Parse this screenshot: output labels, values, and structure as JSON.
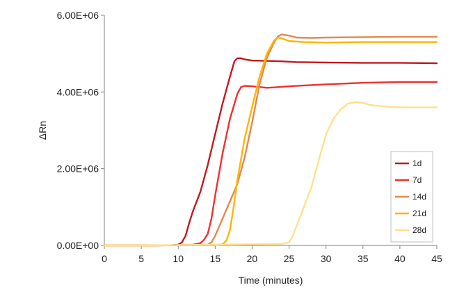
{
  "chart_data": {
    "type": "line",
    "xlabel": "Time (minutes)",
    "ylabel": "ΔRn",
    "xlim": [
      0,
      45
    ],
    "ylim": [
      0,
      6000000
    ],
    "xticks": [
      0,
      5,
      10,
      15,
      20,
      25,
      30,
      35,
      40,
      45
    ],
    "xtick_labels": [
      "0",
      "5",
      "10",
      "15",
      "20",
      "25",
      "30",
      "35",
      "40",
      "45"
    ],
    "yticks": [
      0,
      2000000,
      4000000,
      6000000
    ],
    "ytick_labels": [
      "0.00E+00",
      "2.00E+06",
      "4.00E+06",
      "6.00E+06"
    ],
    "grid": false,
    "legend_position": "right",
    "series": [
      {
        "name": "1d",
        "color": "#c0191e",
        "points": [
          [
            0,
            0
          ],
          [
            5,
            0
          ],
          [
            9,
            5000
          ],
          [
            10,
            20000
          ],
          [
            10.5,
            80000
          ],
          [
            11,
            250000
          ],
          [
            11.5,
            600000
          ],
          [
            12,
            900000
          ],
          [
            13,
            1400000
          ],
          [
            14,
            2100000
          ],
          [
            15,
            2900000
          ],
          [
            16,
            3700000
          ],
          [
            17,
            4400000
          ],
          [
            17.6,
            4800000
          ],
          [
            18,
            4880000
          ],
          [
            18.5,
            4880000
          ],
          [
            19,
            4850000
          ],
          [
            20,
            4820000
          ],
          [
            22,
            4810000
          ],
          [
            24,
            4800000
          ],
          [
            26,
            4780000
          ],
          [
            30,
            4770000
          ],
          [
            35,
            4760000
          ],
          [
            40,
            4760000
          ],
          [
            45,
            4750000
          ]
        ]
      },
      {
        "name": "7d",
        "color": "#f03030",
        "points": [
          [
            0,
            0
          ],
          [
            5,
            0
          ],
          [
            10,
            5000
          ],
          [
            12,
            20000
          ],
          [
            13,
            60000
          ],
          [
            13.5,
            150000
          ],
          [
            14,
            300000
          ],
          [
            14.5,
            700000
          ],
          [
            15,
            1300000
          ],
          [
            16,
            2400000
          ],
          [
            17,
            3300000
          ],
          [
            18,
            3950000
          ],
          [
            18.5,
            4130000
          ],
          [
            19,
            4160000
          ],
          [
            20,
            4150000
          ],
          [
            21,
            4130000
          ],
          [
            22,
            4110000
          ],
          [
            23,
            4120000
          ],
          [
            25,
            4150000
          ],
          [
            30,
            4200000
          ],
          [
            35,
            4240000
          ],
          [
            40,
            4260000
          ],
          [
            45,
            4260000
          ]
        ]
      },
      {
        "name": "14d",
        "color": "#e6884a",
        "points": [
          [
            0,
            0
          ],
          [
            5,
            0
          ],
          [
            10,
            5000
          ],
          [
            14,
            20000
          ],
          [
            14.5,
            80000
          ],
          [
            15,
            250000
          ],
          [
            16,
            700000
          ],
          [
            17,
            1150000
          ],
          [
            18,
            1600000
          ],
          [
            19,
            2300000
          ],
          [
            20,
            3200000
          ],
          [
            21,
            4200000
          ],
          [
            22,
            4900000
          ],
          [
            23,
            5300000
          ],
          [
            23.5,
            5450000
          ],
          [
            24,
            5500000
          ],
          [
            25,
            5470000
          ],
          [
            26,
            5420000
          ],
          [
            28,
            5410000
          ],
          [
            30,
            5420000
          ],
          [
            35,
            5430000
          ],
          [
            40,
            5440000
          ],
          [
            45,
            5440000
          ]
        ]
      },
      {
        "name": "21d",
        "color": "#ffb400",
        "points": [
          [
            0,
            0
          ],
          [
            5,
            0
          ],
          [
            10,
            3000
          ],
          [
            15,
            5000
          ],
          [
            16,
            30000
          ],
          [
            16.5,
            120000
          ],
          [
            17,
            400000
          ],
          [
            17.5,
            1000000
          ],
          [
            18,
            1700000
          ],
          [
            19,
            2800000
          ],
          [
            20,
            3600000
          ],
          [
            21,
            4400000
          ],
          [
            22,
            5000000
          ],
          [
            23,
            5350000
          ],
          [
            23.5,
            5420000
          ],
          [
            24,
            5400000
          ],
          [
            25,
            5330000
          ],
          [
            27,
            5300000
          ],
          [
            30,
            5290000
          ],
          [
            35,
            5300000
          ],
          [
            40,
            5300000
          ],
          [
            45,
            5300000
          ]
        ]
      },
      {
        "name": "28d",
        "color": "#ffe08a",
        "points": [
          [
            0,
            0
          ],
          [
            5,
            0
          ],
          [
            10,
            10000
          ],
          [
            15,
            20000
          ],
          [
            20,
            30000
          ],
          [
            24,
            40000
          ],
          [
            25,
            80000
          ],
          [
            25.5,
            250000
          ],
          [
            26,
            500000
          ],
          [
            27,
            1000000
          ],
          [
            28,
            1500000
          ],
          [
            29,
            2200000
          ],
          [
            30,
            2900000
          ],
          [
            31,
            3300000
          ],
          [
            32,
            3550000
          ],
          [
            33,
            3700000
          ],
          [
            34,
            3740000
          ],
          [
            35,
            3720000
          ],
          [
            36,
            3660000
          ],
          [
            38,
            3620000
          ],
          [
            40,
            3600000
          ],
          [
            45,
            3600000
          ]
        ]
      }
    ]
  }
}
